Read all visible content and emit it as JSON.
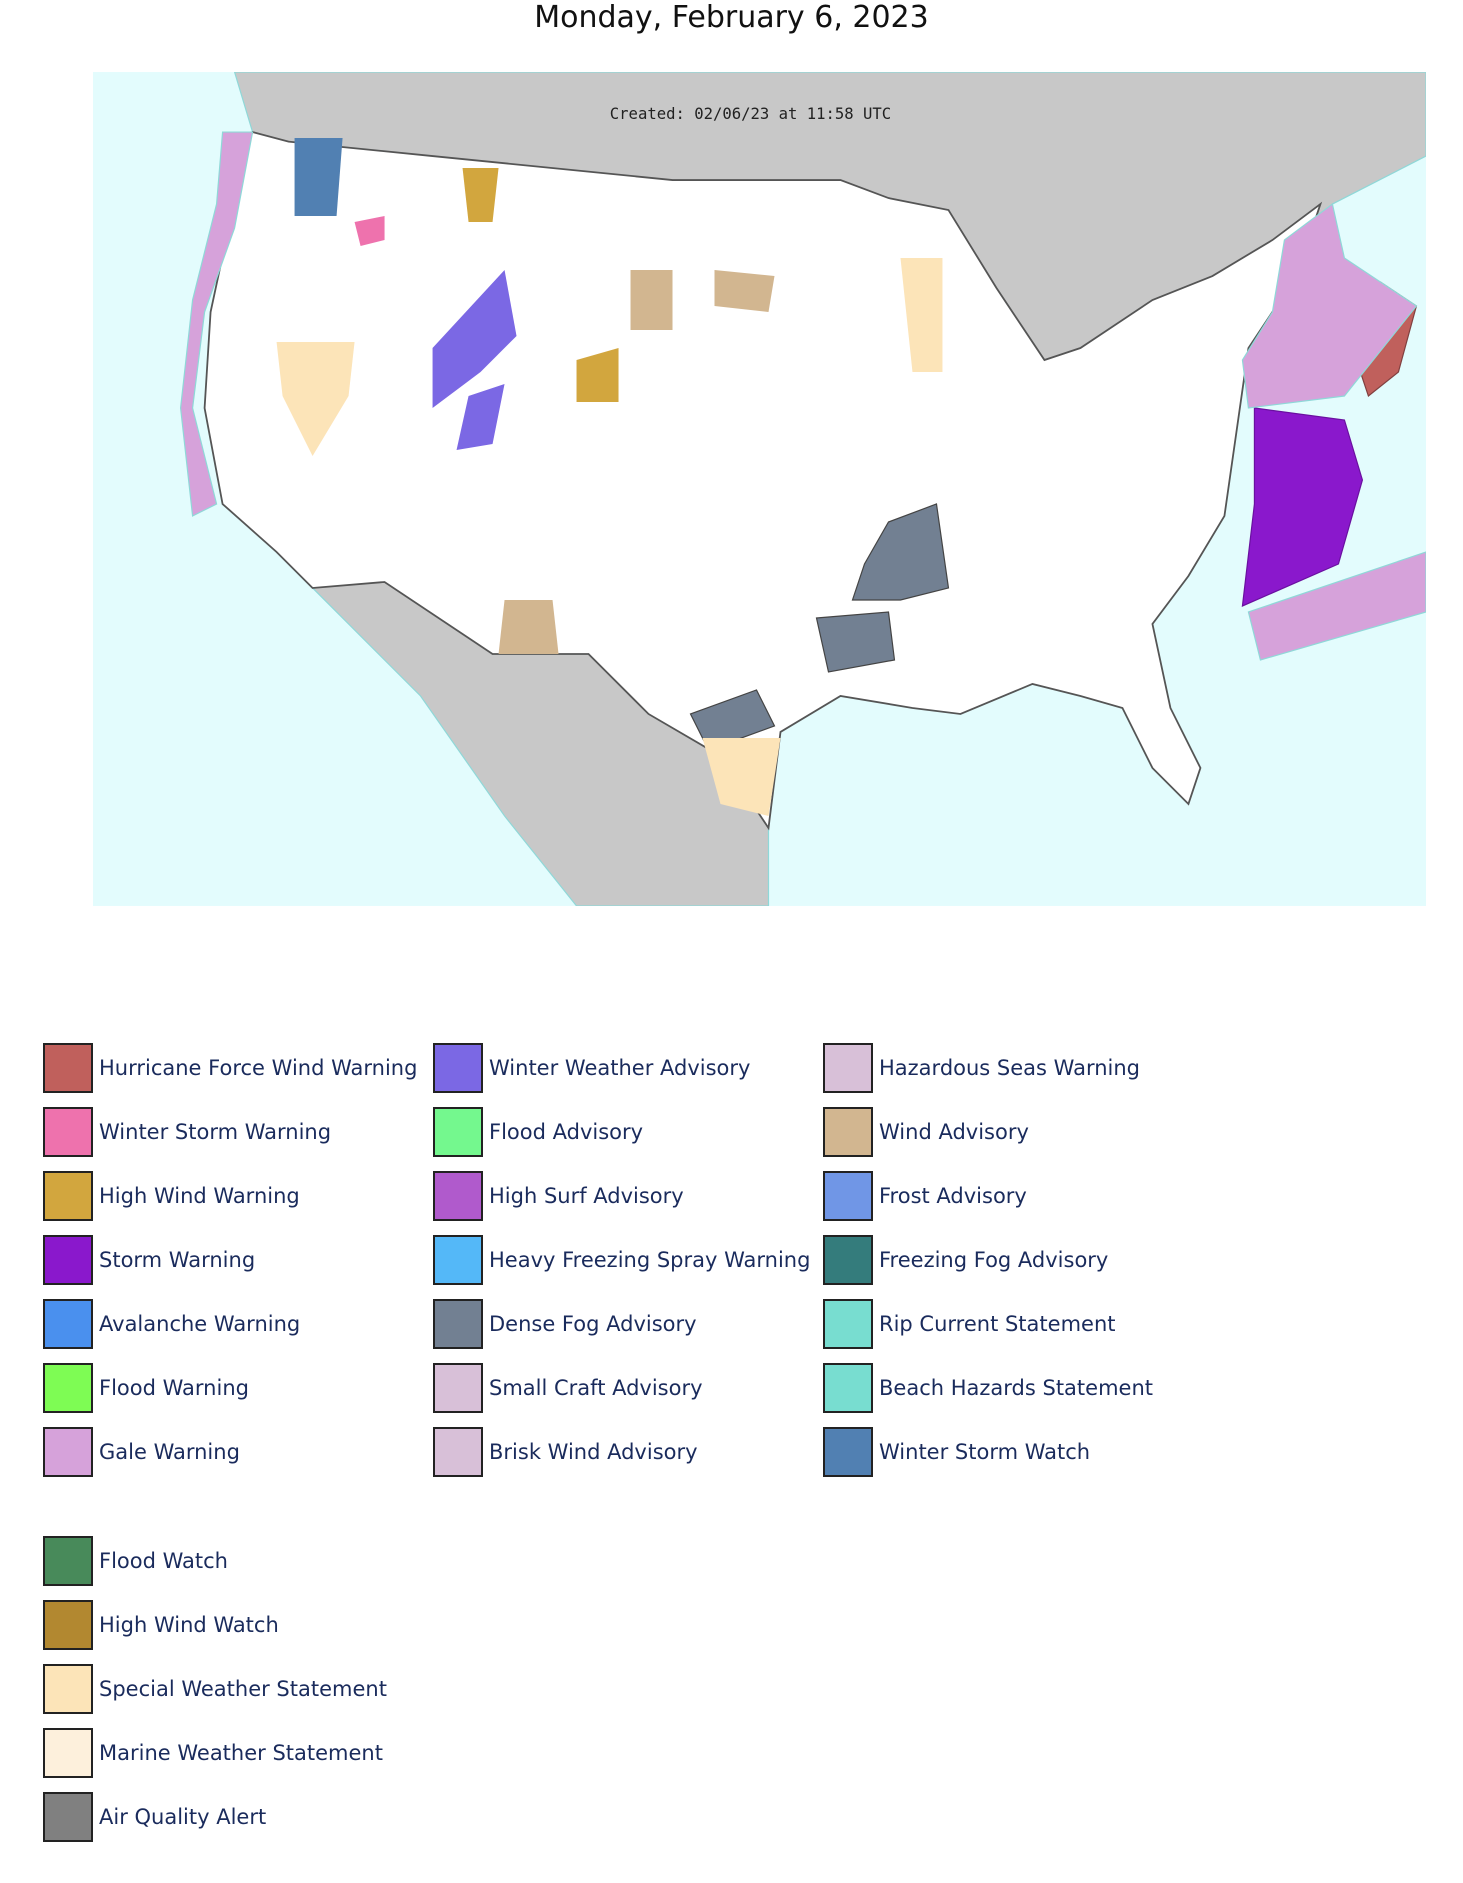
{
  "title": "Monday, February 6, 2023",
  "map": {
    "created": "Created: 02/06/23 at 11:58 UTC"
  },
  "legend": {
    "columns": [
      [
        {
          "label": "Hurricane Force Wind Warning",
          "color": "#c0605c"
        },
        {
          "label": "Winter Storm Warning",
          "color": "#ee72ad"
        },
        {
          "label": "High Wind Warning",
          "color": "#d2a63e"
        },
        {
          "label": "Storm Warning",
          "color": "#8a18cc"
        },
        {
          "label": "Avalanche Warning",
          "color": "#4a90ee"
        },
        {
          "label": "Flood Warning",
          "color": "#7efc54"
        },
        {
          "label": "Gale Warning",
          "color": "#d6a2da"
        }
      ],
      [
        {
          "label": "Winter Weather Advisory",
          "color": "#7b68e4"
        },
        {
          "label": "Flood Advisory",
          "color": "#74f88e"
        },
        {
          "label": "High Surf Advisory",
          "color": "#b05acc"
        },
        {
          "label": "Heavy Freezing Spray Warning",
          "color": "#54b8f8"
        },
        {
          "label": "Dense Fog Advisory",
          "color": "#728092"
        },
        {
          "label": "Small Craft Advisory",
          "color": "#d8c0d8"
        },
        {
          "label": "Brisk Wind Advisory",
          "color": "#d8c0d8"
        }
      ],
      [
        {
          "label": "Hazardous Seas Warning",
          "color": "#d8c0d8"
        },
        {
          "label": "Wind Advisory",
          "color": "#d2b690"
        },
        {
          "label": "Frost Advisory",
          "color": "#7096e6"
        },
        {
          "label": "Freezing Fog Advisory",
          "color": "#347c7c"
        },
        {
          "label": "Rip Current Statement",
          "color": "#78ddd0"
        },
        {
          "label": "Beach Hazards Statement",
          "color": "#78ddd0"
        },
        {
          "label": "Winter Storm Watch",
          "color": "#5180b2"
        }
      ]
    ],
    "watches": [
      {
        "label": "Flood Watch",
        "color": "#488a5a"
      },
      {
        "label": "High Wind Watch",
        "color": "#b28830"
      },
      {
        "label": "Special Weather Statement",
        "color": "#fce4b8"
      },
      {
        "label": "Marine Weather Statement",
        "color": "#fdf0dc"
      },
      {
        "label": "Air Quality Alert",
        "color": "#808080"
      }
    ]
  }
}
